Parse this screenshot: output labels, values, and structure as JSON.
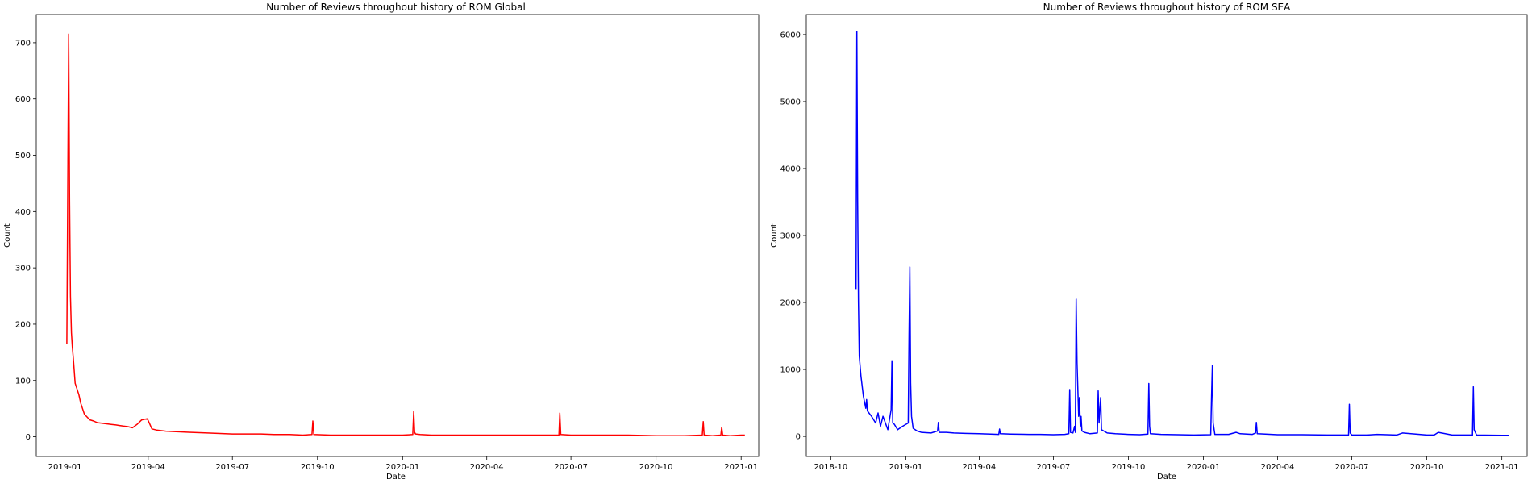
{
  "chart_data": [
    {
      "type": "line",
      "title": "Number of Reviews throughout history of ROM Global",
      "xlabel": "Date",
      "ylabel": "Count",
      "color": "#ff0000",
      "xlim": [
        "2018-12-01",
        "2021-01-20"
      ],
      "ylim": [
        -35,
        750
      ],
      "xticks": [
        "2019-01",
        "2019-04",
        "2019-07",
        "2019-10",
        "2020-01",
        "2020-04",
        "2020-07",
        "2020-10",
        "2021-01"
      ],
      "yticks": [
        0,
        100,
        200,
        300,
        400,
        500,
        600,
        700
      ],
      "grid": false,
      "series": [
        {
          "x": [
            "2019-01-03",
            "2019-01-05",
            "2019-01-06",
            "2019-01-07",
            "2019-01-08",
            "2019-01-09",
            "2019-01-10",
            "2019-01-12",
            "2019-01-14",
            "2019-01-16",
            "2019-01-18",
            "2019-01-20",
            "2019-01-22",
            "2019-01-25",
            "2019-01-28",
            "2019-02-01",
            "2019-02-05",
            "2019-02-10",
            "2019-02-15",
            "2019-02-20",
            "2019-02-25",
            "2019-03-01",
            "2019-03-05",
            "2019-03-10",
            "2019-03-15",
            "2019-03-20",
            "2019-03-25",
            "2019-03-31",
            "2019-04-02",
            "2019-04-05",
            "2019-04-10",
            "2019-04-20",
            "2019-05-01",
            "2019-05-15",
            "2019-06-01",
            "2019-06-15",
            "2019-07-01",
            "2019-07-15",
            "2019-08-01",
            "2019-08-15",
            "2019-09-01",
            "2019-09-15",
            "2019-09-25",
            "2019-09-26",
            "2019-09-27",
            "2019-10-15",
            "2019-11-01",
            "2019-11-15",
            "2019-12-01",
            "2019-12-15",
            "2020-01-01",
            "2020-01-12",
            "2020-01-13",
            "2020-01-14",
            "2020-01-15",
            "2020-01-20",
            "2020-02-01",
            "2020-03-01",
            "2020-04-01",
            "2020-05-01",
            "2020-06-01",
            "2020-06-18",
            "2020-06-19",
            "2020-06-20",
            "2020-07-01",
            "2020-08-01",
            "2020-09-01",
            "2020-10-01",
            "2020-11-01",
            "2020-11-20",
            "2020-11-21",
            "2020-11-22",
            "2020-12-01",
            "2020-12-10",
            "2020-12-11",
            "2020-12-12",
            "2020-12-20",
            "2021-01-01",
            "2021-01-05"
          ],
          "y": [
            165,
            715,
            420,
            250,
            185,
            160,
            140,
            95,
            85,
            75,
            60,
            50,
            40,
            35,
            30,
            28,
            25,
            24,
            23,
            22,
            21,
            20,
            19,
            18,
            16,
            22,
            30,
            32,
            25,
            14,
            12,
            10,
            9,
            8,
            7,
            6,
            5,
            5,
            5,
            4,
            4,
            3,
            4,
            28,
            4,
            3,
            3,
            3,
            3,
            3,
            3,
            4,
            45,
            8,
            5,
            4,
            3,
            3,
            3,
            3,
            3,
            3,
            42,
            4,
            3,
            3,
            3,
            2,
            2,
            3,
            27,
            3,
            2,
            3,
            17,
            3,
            2,
            3,
            3
          ]
        }
      ]
    },
    {
      "type": "line",
      "title": "Number of Reviews throughout history of ROM SEA",
      "xlabel": "Date",
      "ylabel": "Count",
      "color": "#0000ff",
      "xlim": [
        "2018-09-01",
        "2021-02-01"
      ],
      "ylim": [
        -300,
        6300
      ],
      "xticks": [
        "2018-10",
        "2019-01",
        "2019-04",
        "2019-07",
        "2019-10",
        "2020-01",
        "2020-04",
        "2020-07",
        "2020-10",
        "2021-01"
      ],
      "yticks": [
        0,
        1000,
        2000,
        3000,
        4000,
        5000,
        6000
      ],
      "grid": false,
      "series": [
        {
          "x": [
            "2018-11-01",
            "2018-11-02",
            "2018-11-03",
            "2018-11-04",
            "2018-11-05",
            "2018-11-07",
            "2018-11-10",
            "2018-11-13",
            "2018-11-14",
            "2018-11-15",
            "2018-11-20",
            "2018-11-25",
            "2018-11-28",
            "2018-12-01",
            "2018-12-04",
            "2018-12-07",
            "2018-12-10",
            "2018-12-14",
            "2018-12-15",
            "2018-12-16",
            "2018-12-18",
            "2018-12-22",
            "2018-12-28",
            "2019-01-04",
            "2019-01-05",
            "2019-01-06",
            "2019-01-07",
            "2019-01-08",
            "2019-01-10",
            "2019-01-15",
            "2019-01-20",
            "2019-02-01",
            "2019-02-09",
            "2019-02-10",
            "2019-02-11",
            "2019-02-20",
            "2019-03-01",
            "2019-03-15",
            "2019-04-01",
            "2019-04-15",
            "2019-04-25",
            "2019-04-26",
            "2019-04-27",
            "2019-05-10",
            "2019-06-01",
            "2019-06-15",
            "2019-07-01",
            "2019-07-15",
            "2019-07-20",
            "2019-07-21",
            "2019-07-22",
            "2019-07-25",
            "2019-07-27",
            "2019-07-28",
            "2019-07-29",
            "2019-07-30",
            "2019-08-01",
            "2019-08-02",
            "2019-08-03",
            "2019-08-04",
            "2019-08-05",
            "2019-08-08",
            "2019-08-15",
            "2019-08-24",
            "2019-08-25",
            "2019-08-26",
            "2019-08-27",
            "2019-08-28",
            "2019-08-29",
            "2019-09-05",
            "2019-09-15",
            "2019-10-01",
            "2019-10-15",
            "2019-10-25",
            "2019-10-26",
            "2019-10-27",
            "2019-10-28",
            "2019-11-10",
            "2019-12-01",
            "2019-12-20",
            "2020-01-10",
            "2020-01-11",
            "2020-01-12",
            "2020-01-13",
            "2020-01-15",
            "2020-02-01",
            "2020-02-10",
            "2020-02-15",
            "2020-03-01",
            "2020-03-05",
            "2020-03-06",
            "2020-03-07",
            "2020-04-01",
            "2020-05-01",
            "2020-06-01",
            "2020-06-27",
            "2020-06-28",
            "2020-06-29",
            "2020-07-01",
            "2020-07-20",
            "2020-08-01",
            "2020-08-25",
            "2020-09-01",
            "2020-10-01",
            "2020-10-10",
            "2020-10-15",
            "2020-11-01",
            "2020-11-25",
            "2020-11-26",
            "2020-11-27",
            "2020-11-28",
            "2020-12-01",
            "2021-01-01",
            "2021-01-10"
          ],
          "y": [
            2200,
            6050,
            3500,
            2000,
            1200,
            900,
            600,
            420,
            550,
            380,
            300,
            200,
            350,
            150,
            300,
            200,
            100,
            400,
            1130,
            200,
            180,
            100,
            150,
            200,
            1500,
            2530,
            800,
            300,
            120,
            80,
            60,
            50,
            80,
            210,
            60,
            60,
            50,
            45,
            40,
            35,
            30,
            110,
            40,
            35,
            30,
            30,
            25,
            30,
            40,
            700,
            60,
            50,
            150,
            60,
            2050,
            1100,
            300,
            580,
            150,
            300,
            80,
            60,
            40,
            50,
            680,
            200,
            400,
            580,
            100,
            50,
            40,
            30,
            25,
            35,
            790,
            150,
            40,
            30,
            25,
            20,
            25,
            600,
            1060,
            200,
            30,
            30,
            60,
            40,
            30,
            50,
            210,
            40,
            25,
            25,
            20,
            20,
            480,
            50,
            20,
            20,
            30,
            20,
            50,
            20,
            20,
            60,
            20,
            20,
            15,
            740,
            100,
            20,
            15,
            15
          ]
        }
      ]
    }
  ]
}
